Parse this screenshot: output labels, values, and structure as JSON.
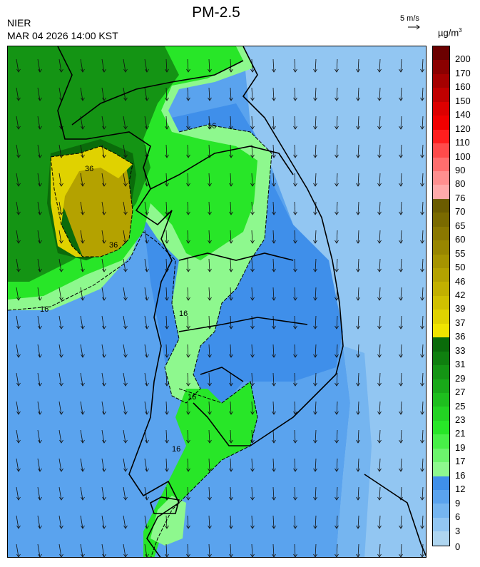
{
  "header": {
    "agency": "NIER",
    "datetime": "MAR 04 2026 14:00 KST",
    "title": "PM-2.5",
    "wind_reference": "5 m/s",
    "unit": "µg/m",
    "unit_exponent": "3"
  },
  "map": {
    "contour_labels": [
      "16",
      "16",
      "16",
      "16",
      "16",
      "36",
      "36"
    ]
  },
  "legend": {
    "ticks": [
      "200",
      "170",
      "160",
      "150",
      "140",
      "120",
      "110",
      "100",
      "90",
      "80",
      "76",
      "70",
      "65",
      "60",
      "55",
      "50",
      "46",
      "42",
      "39",
      "37",
      "36",
      "33",
      "31",
      "29",
      "27",
      "25",
      "23",
      "21",
      "19",
      "17",
      "16",
      "12",
      "9",
      "6",
      "3",
      "0"
    ],
    "colors": [
      "#6b0000",
      "#8b0000",
      "#a50000",
      "#c00000",
      "#dc0000",
      "#f00000",
      "#ff1e1e",
      "#ff4b4b",
      "#ff6e6e",
      "#ff8f8f",
      "#ffaaaa",
      "#6b5c00",
      "#7a6a00",
      "#8a7800",
      "#988600",
      "#a69400",
      "#b4a200",
      "#c2b000",
      "#d0c000",
      "#e0d200",
      "#f0e400",
      "#0a6b0a",
      "#0f7f0f",
      "#149414",
      "#19a919",
      "#1ebe1e",
      "#23d323",
      "#28e628",
      "#48f048",
      "#6cf46c",
      "#8ef88e",
      "#3f8fea",
      "#5aa3ee",
      "#75b5f0",
      "#92c6f2",
      "#aed5f0"
    ]
  }
}
